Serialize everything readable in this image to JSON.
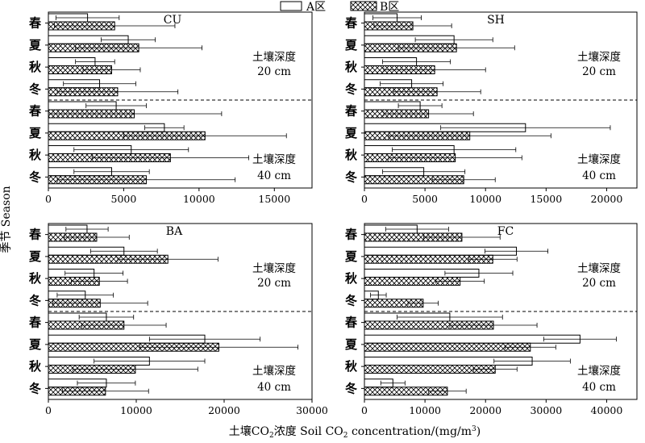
{
  "legend": {
    "a_label": "A区",
    "b_label": "B区"
  },
  "y_axis_label": "季节 Season",
  "x_axis_label": {
    "prefix": "土壤CO",
    "sub1": "2",
    "middle": "浓度 Soil CO",
    "sub2": "2",
    "after": " concentration/(mg/m",
    "sup": "3",
    "end": ")"
  },
  "depth_labels": {
    "depth20_line1": "土壤深度",
    "depth20_line2": "20 cm",
    "depth40_line1": "土壤深度",
    "depth40_line2": "40 cm"
  },
  "colors": {
    "a_fill": "#ffffff",
    "b_hatch": "crosshatch",
    "stroke": "#000000"
  },
  "chart_data": [
    {
      "type": "bar",
      "orientation": "horizontal",
      "title": "CU",
      "xlim": [
        0,
        17500
      ],
      "ticks": [
        0,
        5000,
        10000,
        15000
      ],
      "tick_labels": [
        "0",
        "5000",
        "10000",
        "15000"
      ],
      "categories": [
        "春",
        "夏",
        "秋",
        "冬",
        "春",
        "夏",
        "秋",
        "冬"
      ],
      "groups": [
        "20 cm",
        "20 cm",
        "20 cm",
        "20 cm",
        "40 cm",
        "40 cm",
        "40 cm",
        "40 cm"
      ],
      "series": [
        {
          "name": "A区",
          "values": [
            2600,
            5300,
            3100,
            3400,
            4500,
            7700,
            5500,
            4200
          ],
          "errors": [
            2100,
            1800,
            1300,
            2400,
            2000,
            1300,
            3800,
            2500
          ]
        },
        {
          "name": "B区",
          "values": [
            4400,
            6000,
            4200,
            4600,
            5700,
            10400,
            8100,
            6500
          ],
          "errors": [
            4000,
            4200,
            1900,
            4000,
            5800,
            5400,
            5200,
            5900
          ]
        }
      ]
    },
    {
      "type": "bar",
      "orientation": "horizontal",
      "title": "SH",
      "xlim": [
        0,
        22500
      ],
      "ticks": [
        0,
        5000,
        10000,
        15000,
        20000
      ],
      "tick_labels": [
        "0",
        "5000",
        "10000",
        "15000",
        "20000"
      ],
      "categories": [
        "春",
        "夏",
        "秋",
        "冬",
        "春",
        "夏",
        "秋",
        "冬"
      ],
      "groups": [
        "20 cm",
        "20 cm",
        "20 cm",
        "20 cm",
        "40 cm",
        "40 cm",
        "40 cm",
        "40 cm"
      ],
      "series": [
        {
          "name": "A区",
          "values": [
            2700,
            7400,
            4300,
            3900,
            4600,
            13300,
            7400,
            4900
          ],
          "errors": [
            2000,
            3200,
            2800,
            2600,
            1800,
            7000,
            5100,
            3400
          ]
        },
        {
          "name": "B区",
          "values": [
            4000,
            7600,
            5800,
            6000,
            5300,
            8700,
            7500,
            8200
          ],
          "errors": [
            3200,
            4800,
            4200,
            3600,
            3700,
            6700,
            5500,
            2600
          ]
        }
      ]
    },
    {
      "type": "bar",
      "orientation": "horizontal",
      "title": "BA",
      "xlim": [
        0,
        30000
      ],
      "ticks": [
        0,
        10000,
        20000,
        30000
      ],
      "tick_labels": [
        "0",
        "10000",
        "20000",
        "30000"
      ],
      "categories": [
        "春",
        "夏",
        "秋",
        "冬",
        "春",
        "夏",
        "秋",
        "冬"
      ],
      "groups": [
        "20 cm",
        "20 cm",
        "20 cm",
        "20 cm",
        "40 cm",
        "40 cm",
        "40 cm",
        "40 cm"
      ],
      "series": [
        {
          "name": "A区",
          "values": [
            4400,
            8600,
            5200,
            4200,
            6600,
            17800,
            11500,
            6600
          ],
          "errors": [
            2400,
            3800,
            3300,
            3200,
            3100,
            6300,
            6300,
            3300
          ]
        },
        {
          "name": "B区",
          "values": [
            5500,
            13600,
            5800,
            5900,
            8600,
            19400,
            9900,
            6500
          ],
          "errors": [
            3700,
            5700,
            3200,
            5400,
            4800,
            9000,
            7100,
            4900
          ]
        }
      ]
    },
    {
      "type": "bar",
      "orientation": "horizontal",
      "title": "FC",
      "xlim": [
        0,
        45000
      ],
      "ticks": [
        0,
        10000,
        20000,
        30000,
        40000
      ],
      "tick_labels": [
        "0",
        "10000",
        "20000",
        "30000",
        "40000"
      ],
      "categories": [
        "春",
        "夏",
        "秋",
        "冬",
        "春",
        "夏",
        "秋",
        "冬"
      ],
      "groups": [
        "20 cm",
        "20 cm",
        "20 cm",
        "20 cm",
        "40 cm",
        "40 cm",
        "40 cm",
        "40 cm"
      ],
      "series": [
        {
          "name": "A区",
          "values": [
            8700,
            25100,
            18900,
            2300,
            14100,
            35600,
            27700,
            4700
          ],
          "errors": [
            5200,
            5200,
            5600,
            1300,
            8700,
            6000,
            6300,
            2000
          ]
        },
        {
          "name": "B区",
          "values": [
            16100,
            21200,
            15800,
            9700,
            21300,
            27400,
            21600,
            13700
          ],
          "errors": [
            6300,
            4000,
            4000,
            2500,
            7200,
            4200,
            3600,
            3100
          ]
        }
      ]
    }
  ]
}
